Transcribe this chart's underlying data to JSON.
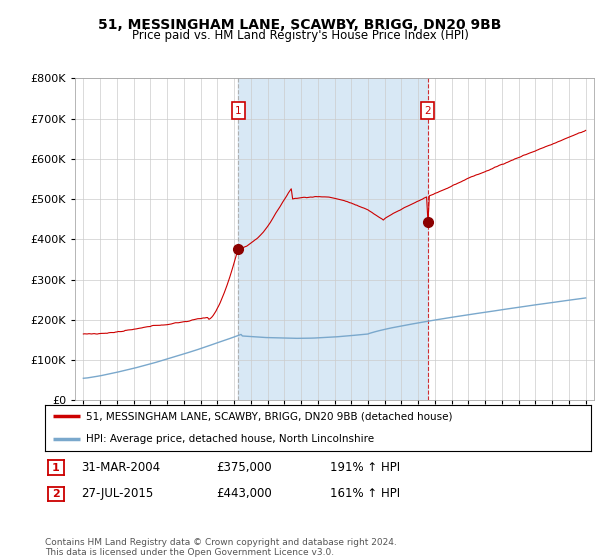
{
  "title": "51, MESSINGHAM LANE, SCAWBY, BRIGG, DN20 9BB",
  "subtitle": "Price paid vs. HM Land Registry's House Price Index (HPI)",
  "legend_line1": "51, MESSINGHAM LANE, SCAWBY, BRIGG, DN20 9BB (detached house)",
  "legend_line2": "HPI: Average price, detached house, North Lincolnshire",
  "footnote": "Contains HM Land Registry data © Crown copyright and database right 2024.\nThis data is licensed under the Open Government Licence v3.0.",
  "sale1_label": "1",
  "sale1_date": "31-MAR-2004",
  "sale1_price": "£375,000",
  "sale1_hpi": "191% ↑ HPI",
  "sale1_year": 2004.25,
  "sale1_value": 375000,
  "sale2_label": "2",
  "sale2_date": "27-JUL-2015",
  "sale2_price": "£443,000",
  "sale2_hpi": "161% ↑ HPI",
  "sale2_year": 2015.56,
  "sale2_value": 443000,
  "red_line_color": "#cc0000",
  "blue_line_color": "#7aa8cc",
  "vline_color": "#cc0000",
  "shade_color": "#d8e8f5",
  "background_color": "#ffffff",
  "grid_color": "#cccccc",
  "ylim": [
    0,
    800000
  ],
  "xlim_start": 1994.5,
  "xlim_end": 2025.5
}
